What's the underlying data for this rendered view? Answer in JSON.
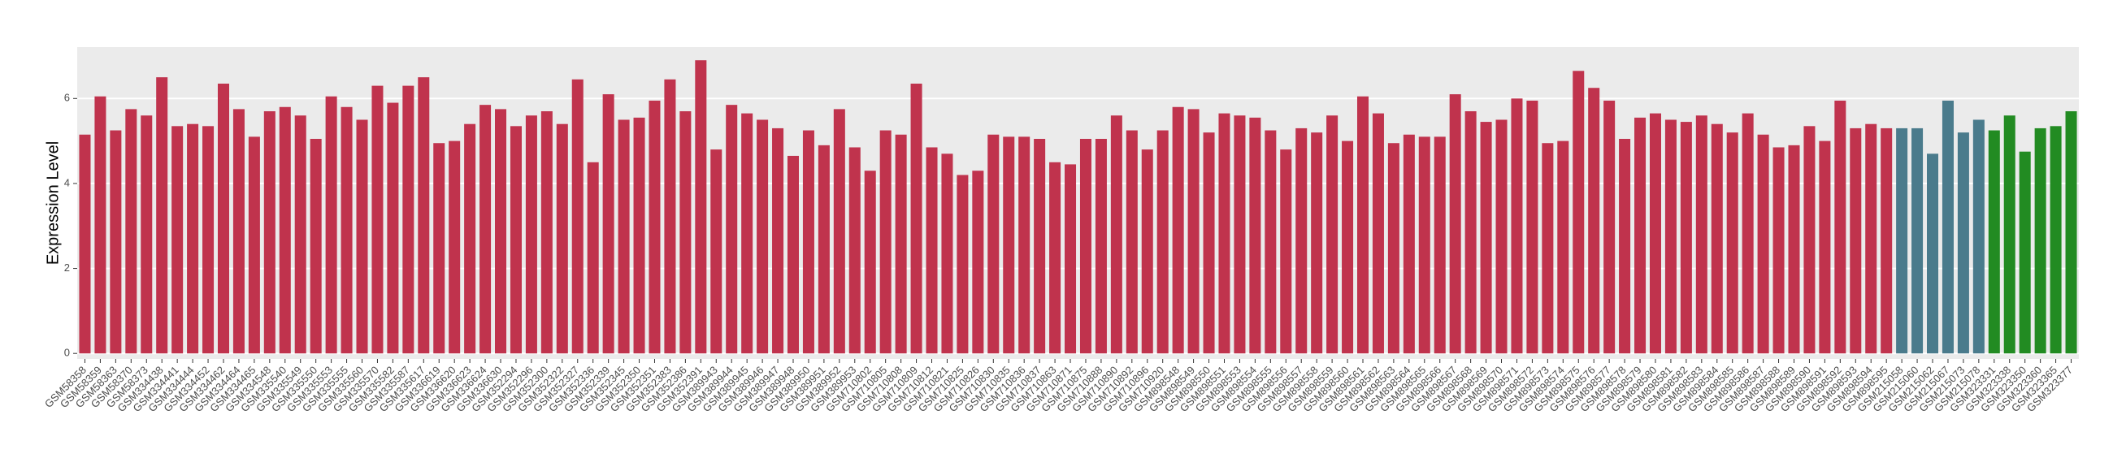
{
  "chart_data": {
    "type": "bar",
    "y_label": "Expression Level",
    "categories": [
      "GSM58358",
      "GSM58359",
      "GSM58363",
      "GSM58370",
      "GSM58373",
      "GSM334438",
      "GSM334441",
      "GSM334444",
      "GSM334452",
      "GSM334462",
      "GSM334464",
      "GSM334465",
      "GSM334548",
      "GSM335540",
      "GSM335549",
      "GSM335550",
      "GSM335553",
      "GSM335555",
      "GSM335560",
      "GSM335570",
      "GSM335582",
      "GSM335587",
      "GSM335617",
      "GSM336619",
      "GSM336620",
      "GSM336623",
      "GSM336624",
      "GSM336630",
      "GSM352294",
      "GSM352296",
      "GSM352300",
      "GSM352322",
      "GSM352327",
      "GSM352336",
      "GSM352339",
      "GSM352345",
      "GSM352350",
      "GSM352351",
      "GSM352383",
      "GSM352386",
      "GSM352391",
      "GSM389943",
      "GSM389944",
      "GSM389945",
      "GSM389946",
      "GSM389947",
      "GSM389948",
      "GSM389950",
      "GSM389951",
      "GSM389952",
      "GSM389953",
      "GSM710802",
      "GSM710805",
      "GSM710808",
      "GSM710809",
      "GSM710812",
      "GSM710821",
      "GSM710825",
      "GSM710826",
      "GSM710830",
      "GSM710835",
      "GSM710836",
      "GSM710837",
      "GSM710863",
      "GSM710871",
      "GSM710875",
      "GSM710888",
      "GSM710890",
      "GSM710892",
      "GSM710896",
      "GSM710920",
      "GSM898548",
      "GSM898549",
      "GSM898550",
      "GSM898551",
      "GSM898553",
      "GSM898554",
      "GSM898555",
      "GSM898556",
      "GSM898557",
      "GSM898558",
      "GSM898559",
      "GSM898560",
      "GSM898561",
      "GSM898562",
      "GSM898563",
      "GSM898564",
      "GSM898565",
      "GSM898566",
      "GSM898567",
      "GSM898568",
      "GSM898569",
      "GSM898570",
      "GSM898571",
      "GSM898572",
      "GSM898573",
      "GSM898574",
      "GSM898575",
      "GSM898576",
      "GSM898577",
      "GSM898578",
      "GSM898579",
      "GSM898580",
      "GSM898581",
      "GSM898582",
      "GSM898583",
      "GSM898584",
      "GSM898585",
      "GSM898586",
      "GSM898587",
      "GSM898588",
      "GSM898589",
      "GSM898590",
      "GSM898591",
      "GSM898592",
      "GSM898593",
      "GSM898594",
      "GSM898595",
      "GSM215058",
      "GSM215060",
      "GSM215062",
      "GSM215067",
      "GSM215073",
      "GSM215078",
      "GSM323331",
      "GSM323338",
      "GSM323350",
      "GSM323360",
      "GSM323365",
      "GSM323377"
    ],
    "values": [
      5.15,
      6.05,
      5.25,
      5.75,
      5.6,
      6.5,
      5.35,
      5.4,
      5.35,
      6.35,
      5.75,
      5.1,
      5.7,
      5.8,
      5.6,
      5.05,
      6.05,
      5.8,
      5.5,
      6.3,
      5.9,
      6.3,
      6.5,
      4.95,
      5.0,
      5.4,
      5.85,
      5.75,
      5.35,
      5.6,
      5.7,
      5.4,
      6.45,
      4.5,
      6.1,
      5.5,
      5.55,
      5.95,
      6.45,
      5.7,
      6.9,
      4.8,
      5.85,
      5.65,
      5.5,
      5.3,
      4.65,
      5.25,
      4.9,
      5.75,
      4.85,
      4.3,
      5.25,
      5.15,
      6.35,
      4.85,
      4.7,
      4.2,
      4.3,
      5.15,
      5.1,
      5.1,
      5.05,
      4.5,
      4.45,
      5.05,
      5.05,
      5.6,
      5.25,
      4.8,
      5.25,
      5.8,
      5.75,
      5.2,
      5.65,
      5.6,
      5.55,
      5.25,
      4.8,
      5.3,
      5.2,
      5.6,
      5.0,
      6.05,
      5.65,
      4.95,
      5.15,
      5.1,
      5.1,
      6.1,
      5.7,
      5.45,
      5.5,
      6.0,
      5.95,
      4.95,
      5.0,
      6.65,
      6.25,
      5.95,
      5.05,
      5.55,
      5.65,
      5.5,
      5.45,
      5.6,
      5.4,
      5.2,
      5.65,
      5.15,
      4.85,
      4.9,
      5.35,
      5.0,
      5.95,
      5.3,
      5.4,
      5.3,
      5.3,
      5.3,
      4.7,
      5.95,
      5.2,
      5.5,
      5.25,
      5.6,
      4.75,
      5.3,
      5.35,
      5.7
    ],
    "colors": [
      "#c0334d",
      "#c0334d",
      "#c0334d",
      "#c0334d",
      "#c0334d",
      "#c0334d",
      "#c0334d",
      "#c0334d",
      "#c0334d",
      "#c0334d",
      "#c0334d",
      "#c0334d",
      "#c0334d",
      "#c0334d",
      "#c0334d",
      "#c0334d",
      "#c0334d",
      "#c0334d",
      "#c0334d",
      "#c0334d",
      "#c0334d",
      "#c0334d",
      "#c0334d",
      "#c0334d",
      "#c0334d",
      "#c0334d",
      "#c0334d",
      "#c0334d",
      "#c0334d",
      "#c0334d",
      "#c0334d",
      "#c0334d",
      "#c0334d",
      "#c0334d",
      "#c0334d",
      "#c0334d",
      "#c0334d",
      "#c0334d",
      "#c0334d",
      "#c0334d",
      "#c0334d",
      "#c0334d",
      "#c0334d",
      "#c0334d",
      "#c0334d",
      "#c0334d",
      "#c0334d",
      "#c0334d",
      "#c0334d",
      "#c0334d",
      "#c0334d",
      "#c0334d",
      "#c0334d",
      "#c0334d",
      "#c0334d",
      "#c0334d",
      "#c0334d",
      "#c0334d",
      "#c0334d",
      "#c0334d",
      "#c0334d",
      "#c0334d",
      "#c0334d",
      "#c0334d",
      "#c0334d",
      "#c0334d",
      "#c0334d",
      "#c0334d",
      "#c0334d",
      "#c0334d",
      "#c0334d",
      "#c0334d",
      "#c0334d",
      "#c0334d",
      "#c0334d",
      "#c0334d",
      "#c0334d",
      "#c0334d",
      "#c0334d",
      "#c0334d",
      "#c0334d",
      "#c0334d",
      "#c0334d",
      "#c0334d",
      "#c0334d",
      "#c0334d",
      "#c0334d",
      "#c0334d",
      "#c0334d",
      "#c0334d",
      "#c0334d",
      "#c0334d",
      "#c0334d",
      "#c0334d",
      "#c0334d",
      "#c0334d",
      "#c0334d",
      "#c0334d",
      "#c0334d",
      "#c0334d",
      "#c0334d",
      "#c0334d",
      "#c0334d",
      "#c0334d",
      "#c0334d",
      "#c0334d",
      "#c0334d",
      "#c0334d",
      "#c0334d",
      "#c0334d",
      "#c0334d",
      "#c0334d",
      "#c0334d",
      "#c0334d",
      "#c0334d",
      "#c0334d",
      "#c0334d",
      "#c0334d",
      "#4a7b8c",
      "#4a7b8c",
      "#4a7b8c",
      "#4a7b8c",
      "#4a7b8c",
      "#4a7b8c",
      "#228b22",
      "#228b22",
      "#228b22",
      "#228b22",
      "#228b22",
      "#228b22"
    ],
    "ylim": [
      -0.13,
      7.21
    ],
    "yticks": [
      0,
      2,
      4,
      6
    ],
    "grid": true
  }
}
